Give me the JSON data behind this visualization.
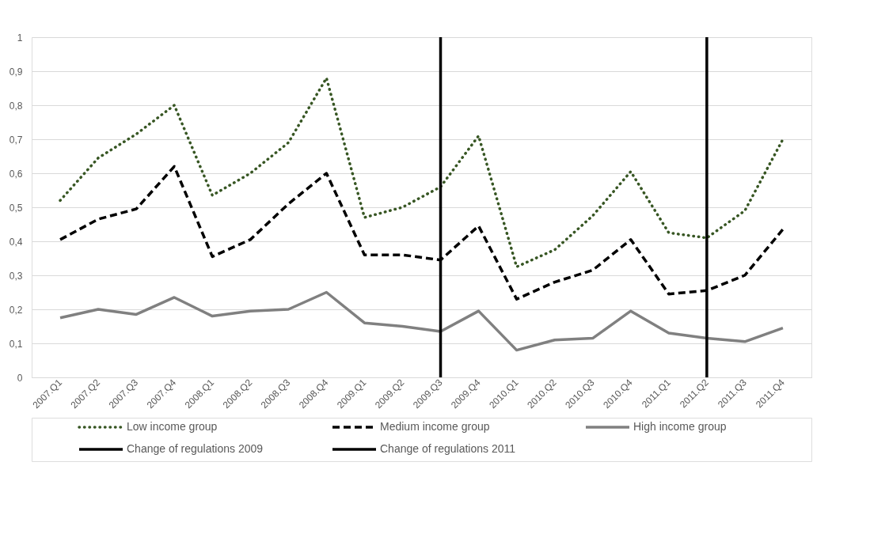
{
  "chart_data": {
    "type": "line",
    "categories": [
      "2007.Q1",
      "2007.Q2",
      "2007.Q3",
      "2007.Q4",
      "2008.Q1",
      "2008.Q2",
      "2008.Q3",
      "2008.Q4",
      "2009.Q1",
      "2009.Q2",
      "2009.Q3",
      "2009.Q4",
      "2010.Q1",
      "2010.Q2",
      "2010.Q3",
      "2010.Q4",
      "2011.Q1",
      "2011.Q2",
      "2011.Q3",
      "2011.Q4"
    ],
    "series": [
      {
        "name": "Low income group",
        "color": "#375623",
        "line_style": "dotted",
        "values": [
          0.52,
          0.645,
          0.715,
          0.8,
          0.535,
          0.6,
          0.69,
          0.88,
          0.47,
          0.5,
          0.56,
          0.71,
          0.325,
          0.375,
          0.475,
          0.605,
          0.425,
          0.41,
          0.49,
          0.7
        ]
      },
      {
        "name": "Medium income group",
        "color": "#000000",
        "line_style": "dashed",
        "values": [
          0.405,
          0.465,
          0.495,
          0.62,
          0.355,
          0.405,
          0.51,
          0.6,
          0.36,
          0.36,
          0.345,
          0.445,
          0.23,
          0.28,
          0.315,
          0.405,
          0.245,
          0.255,
          0.3,
          0.435
        ]
      },
      {
        "name": "High income group",
        "color": "#808080",
        "line_style": "solid",
        "values": [
          0.175,
          0.2,
          0.185,
          0.235,
          0.18,
          0.195,
          0.2,
          0.25,
          0.16,
          0.15,
          0.135,
          0.195,
          0.08,
          0.11,
          0.115,
          0.195,
          0.13,
          0.115,
          0.105,
          0.145
        ]
      }
    ],
    "ref_lines": [
      {
        "axis": "x",
        "value": "2009.Q3",
        "label": "Change of regulations 2009",
        "color": "#000000",
        "line_style": "solid"
      },
      {
        "axis": "x",
        "value": "2011.Q2",
        "label": "Change of regulations 2011",
        "color": "#000000",
        "line_style": "solid"
      }
    ],
    "ylim": [
      0,
      1
    ],
    "yticks": [
      0,
      {
        "value": 0.1,
        "label": "0,1"
      },
      {
        "value": 0.2,
        "label": "0,2"
      },
      {
        "value": 0.3,
        "label": "0,3"
      },
      {
        "value": 0.4,
        "label": "0,4"
      },
      {
        "value": 0.5,
        "label": "0,5"
      },
      {
        "value": 0.6,
        "label": "0,6"
      },
      {
        "value": 0.7,
        "label": "0,7"
      },
      {
        "value": 0.8,
        "label": "0,8"
      },
      {
        "value": 0.9,
        "label": "0,9"
      },
      1
    ],
    "grid": "y",
    "legend": "bottom"
  }
}
